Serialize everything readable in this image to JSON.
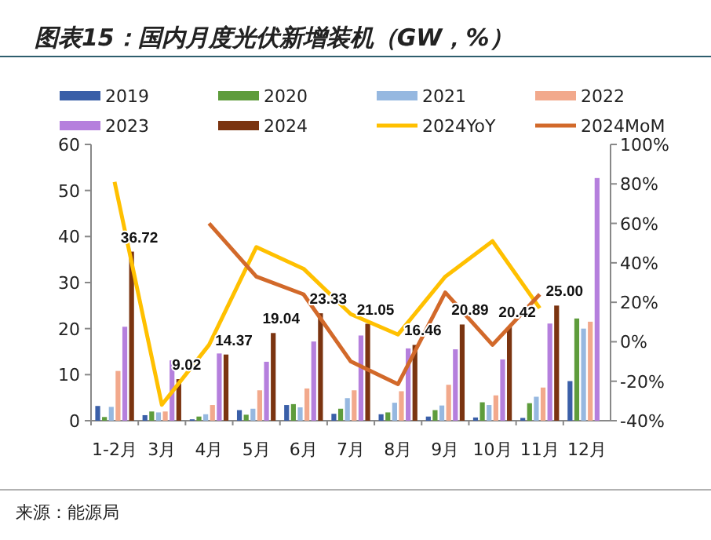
{
  "chart_data": {
    "type": "bar",
    "title": "图表15：国内月度光伏新增装机（GW，%）",
    "categories": [
      "1-2月",
      "3月",
      "4月",
      "5月",
      "6月",
      "7月",
      "8月",
      "9月",
      "10月",
      "11月",
      "12月"
    ],
    "series": [
      {
        "name": "2019",
        "color": "#3a5fa8",
        "values": [
          3.2,
          1.2,
          0.3,
          2.3,
          3.4,
          1.5,
          1.4,
          0.9,
          0.7,
          0.6,
          8.6
        ]
      },
      {
        "name": "2020",
        "color": "#5e9c3c",
        "values": [
          0.8,
          2.0,
          0.9,
          1.3,
          3.6,
          2.6,
          1.8,
          2.3,
          4.0,
          3.8,
          22.2
        ]
      },
      {
        "name": "2021",
        "color": "#96b8e0",
        "values": [
          3.0,
          1.8,
          1.4,
          2.6,
          2.9,
          4.9,
          3.9,
          3.3,
          3.4,
          5.2,
          20.0
        ]
      },
      {
        "name": "2022",
        "color": "#f2a98c",
        "values": [
          10.8,
          2.0,
          3.4,
          6.6,
          7.0,
          6.6,
          6.4,
          7.8,
          5.5,
          7.2,
          21.5
        ]
      },
      {
        "name": "2023",
        "color": "#b57fdd",
        "values": [
          20.4,
          13.1,
          14.6,
          12.8,
          17.2,
          18.5,
          15.7,
          15.5,
          13.3,
          21.1,
          52.7
        ]
      },
      {
        "name": "2024",
        "color": "#7b3410",
        "values": [
          36.72,
          9.02,
          14.37,
          19.04,
          23.33,
          21.05,
          16.46,
          20.89,
          20.42,
          25.0,
          null
        ],
        "value_labels": [
          "36.72",
          "9.02",
          "14.37",
          "19.04",
          "23.33",
          "21.05",
          "16.46",
          "20.89",
          "20.42",
          "25.00",
          null
        ]
      },
      {
        "name": "2024YoY",
        "type": "line",
        "axis": "y2",
        "color": "#ffc000",
        "values": [
          81,
          -32,
          -1.6,
          48,
          37,
          14,
          3.7,
          33,
          51,
          17,
          null
        ]
      },
      {
        "name": "2024MoM",
        "type": "line",
        "axis": "y2",
        "color": "#d2692a",
        "values": [
          null,
          null,
          60,
          33,
          24,
          -10,
          -21.5,
          25,
          -1.6,
          24,
          null
        ]
      }
    ],
    "ylim": [
      0,
      60
    ],
    "yticks": [
      0,
      10,
      20,
      30,
      40,
      50,
      60
    ],
    "y2lim": [
      -40,
      100
    ],
    "y2ticks": [
      {
        "value": -40,
        "label": "-40%"
      },
      {
        "value": -20,
        "label": "-20%"
      },
      {
        "value": 0,
        "label": "0%"
      },
      {
        "value": 20,
        "label": "20%"
      },
      {
        "value": 40,
        "label": "40%"
      },
      {
        "value": 60,
        "label": "60%"
      },
      {
        "value": 80,
        "label": "80%"
      },
      {
        "value": 100,
        "label": "100%"
      }
    ],
    "grid": false,
    "legend": "top",
    "marker": "none",
    "annotations": [
      "来源：能源局"
    ]
  }
}
